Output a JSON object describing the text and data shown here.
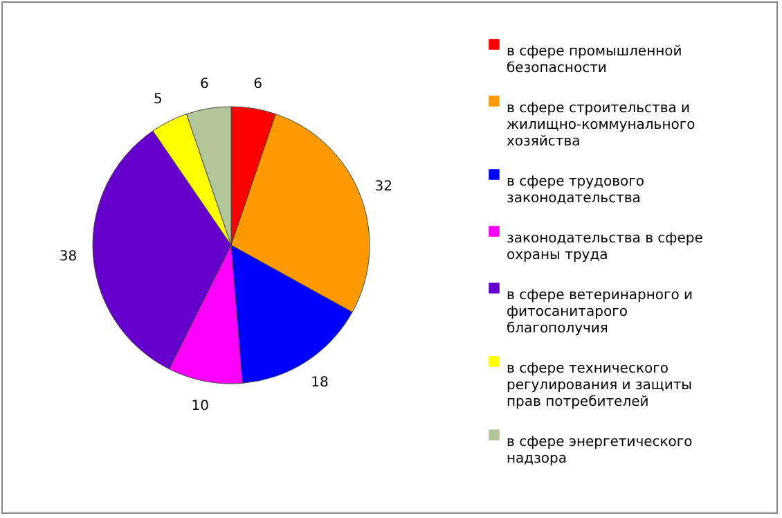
{
  "chart_data": {
    "type": "pie",
    "categories": [
      "в сфере промышленной безопасности",
      "в сфере строительства и жилищно-коммунального хозяйства",
      "в сфере трудового законодательства",
      "законодательства  в сфере охраны труда",
      "в сфере ветеринарного и фитосанитарого благополучия",
      "в сфере технического регулирования и защиты прав потребителей",
      "в сфере энергетического надзора"
    ],
    "values": [
      6,
      32,
      18,
      10,
      38,
      5,
      6
    ],
    "colors": [
      "#ff0000",
      "#ff9900",
      "#0000ff",
      "#ff00ff",
      "#6600cc",
      "#ffff00",
      "#b3c69a"
    ],
    "data_labels": true,
    "legend": "right"
  }
}
